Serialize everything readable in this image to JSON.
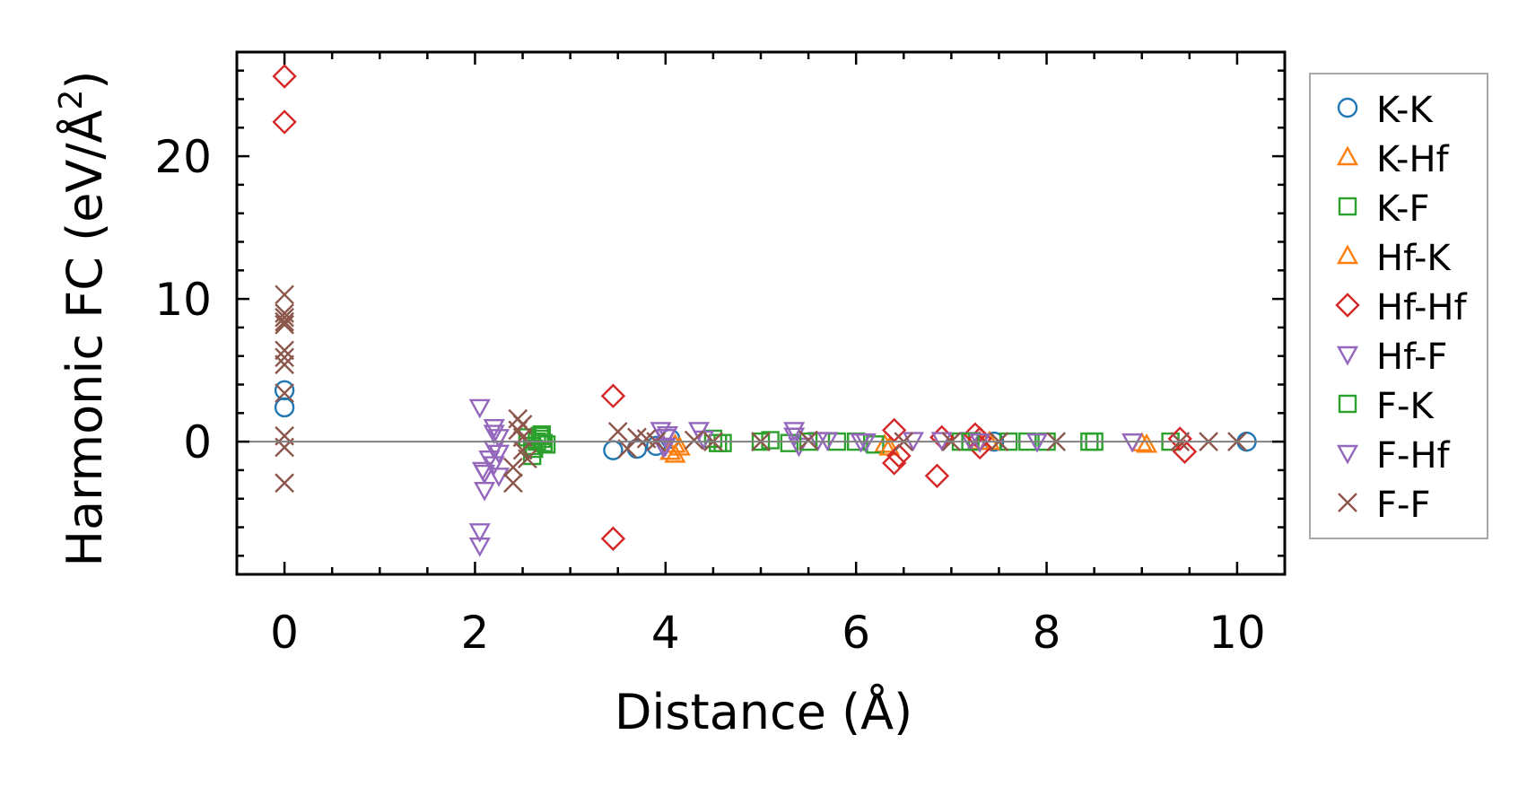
{
  "chart_data": {
    "type": "scatter",
    "xlabel": "Distance (Å)",
    "ylabel_main": "Harmonic FC (eV/Å",
    "ylabel_sup": "2",
    "ylabel_tail": ")",
    "xlim": [
      -0.5,
      10.5
    ],
    "ylim": [
      -9.3,
      27.3
    ],
    "xticks": [
      0,
      2,
      4,
      6,
      8,
      10
    ],
    "xtick_labels": [
      "0",
      "2",
      "4",
      "6",
      "8",
      "10"
    ],
    "yticks": [
      0,
      10,
      20
    ],
    "ytick_labels": [
      "0",
      "10",
      "20"
    ],
    "zero_line": true,
    "grid": false,
    "legend_position": "right, outside plot",
    "series": [
      {
        "name": "K-K",
        "marker": "circle",
        "color": "#1f77b4",
        "x": [
          0,
          0,
          3.45,
          3.7,
          3.9,
          4.05,
          7.45,
          10.1
        ],
        "y": [
          3.6,
          2.4,
          -0.6,
          -0.5,
          -0.3,
          0.2,
          0.0,
          0.0
        ]
      },
      {
        "name": "K-Hf",
        "marker": "triangle-up",
        "color": "#ff7f0e",
        "x": [
          4.1,
          4.15,
          6.3,
          7.3,
          9.05
        ],
        "y": [
          -0.9,
          -0.4,
          -0.2,
          0.0,
          -0.2
        ]
      },
      {
        "name": "K-F",
        "marker": "square",
        "color": "#2ca02c",
        "x": [
          2.55,
          2.6,
          2.65,
          2.7,
          2.75,
          2.6,
          2.7,
          4.5,
          4.55,
          5.0,
          5.3,
          5.8,
          6.2,
          7.1,
          7.6,
          8.0,
          8.5,
          9.3
        ],
        "y": [
          0.3,
          -0.3,
          0.0,
          0.2,
          -0.2,
          -1.0,
          0.5,
          0.2,
          -0.1,
          0.0,
          -0.1,
          0.0,
          -0.2,
          0.0,
          0.0,
          0.0,
          0.0,
          0.0
        ]
      },
      {
        "name": "Hf-K",
        "marker": "triangle-up",
        "color": "#ff7f0e",
        "x": [
          4.05,
          4.1,
          6.35,
          7.4,
          9.0
        ],
        "y": [
          -0.7,
          -0.2,
          -0.4,
          0.0,
          -0.1
        ]
      },
      {
        "name": "Hf-Hf",
        "marker": "diamond",
        "color": "#d62728",
        "x": [
          0,
          0,
          3.45,
          3.45,
          6.4,
          6.4,
          6.45,
          6.85,
          6.9,
          7.25,
          7.3,
          7.3,
          9.4,
          9.45
        ],
        "y": [
          25.6,
          22.4,
          3.2,
          -6.8,
          0.8,
          -1.5,
          -1.0,
          -2.4,
          0.3,
          0.5,
          -0.4,
          0.2,
          0.2,
          -0.7
        ]
      },
      {
        "name": "Hf-F",
        "marker": "triangle-down",
        "color": "#9467bd",
        "x": [
          2.05,
          2.05,
          2.05,
          2.1,
          2.1,
          2.2,
          2.2,
          2.2,
          2.25,
          2.25,
          3.95,
          4.0,
          4.0,
          4.35,
          4.4,
          5.35,
          5.4,
          5.6,
          6.1,
          6.6,
          7.2,
          8.9
        ],
        "y": [
          2.4,
          -7.3,
          -6.3,
          -3.4,
          -2.2,
          1.0,
          -0.5,
          -1.6,
          0.3,
          -2.4,
          0.8,
          -0.3,
          0.3,
          0.8,
          0.2,
          0.8,
          -0.3,
          0.1,
          0.0,
          0.1,
          0.1,
          0.0
        ]
      },
      {
        "name": "F-K",
        "marker": "square",
        "color": "#2ca02c",
        "x": [
          2.62,
          2.68,
          2.72,
          4.6,
          5.1,
          5.5,
          6.0,
          7.2,
          7.8,
          8.45
        ],
        "y": [
          -0.5,
          0.4,
          -0.1,
          -0.1,
          0.1,
          0.0,
          0.0,
          0.0,
          0.0,
          0.0
        ]
      },
      {
        "name": "F-Hf",
        "marker": "triangle-down",
        "color": "#9467bd",
        "x": [
          2.08,
          2.15,
          2.2,
          2.25,
          3.98,
          4.02,
          5.35,
          5.7,
          6.05,
          6.9,
          7.3,
          7.9
        ],
        "y": [
          -2.0,
          -1.2,
          0.6,
          -0.8,
          -0.4,
          0.5,
          0.4,
          0.1,
          0.0,
          0.1,
          0.0,
          0.0
        ]
      },
      {
        "name": "F-F",
        "marker": "x",
        "color": "#8c564b",
        "x": [
          0,
          0,
          0,
          0,
          0,
          0,
          0,
          0,
          0,
          0,
          0,
          0,
          2.4,
          2.45,
          2.45,
          2.5,
          2.5,
          2.55,
          2.4,
          2.5,
          3.5,
          3.6,
          3.7,
          3.8,
          3.9,
          4.3,
          4.5,
          5.0,
          5.5,
          6.5,
          7.0,
          7.5,
          8.1,
          9.4,
          9.7,
          10.0
        ],
        "y": [
          10.3,
          9.0,
          8.7,
          8.4,
          8.2,
          6.4,
          5.9,
          5.4,
          3.4,
          0.4,
          -0.4,
          -2.9,
          -2.9,
          1.6,
          0.8,
          1.2,
          -0.6,
          -1.2,
          -1.8,
          0.3,
          0.7,
          -0.5,
          0.3,
          0.2,
          0.0,
          0.1,
          0.0,
          0.0,
          0.1,
          0.0,
          0.0,
          0.0,
          0.0,
          0.0,
          0.0,
          0.0
        ]
      }
    ]
  }
}
